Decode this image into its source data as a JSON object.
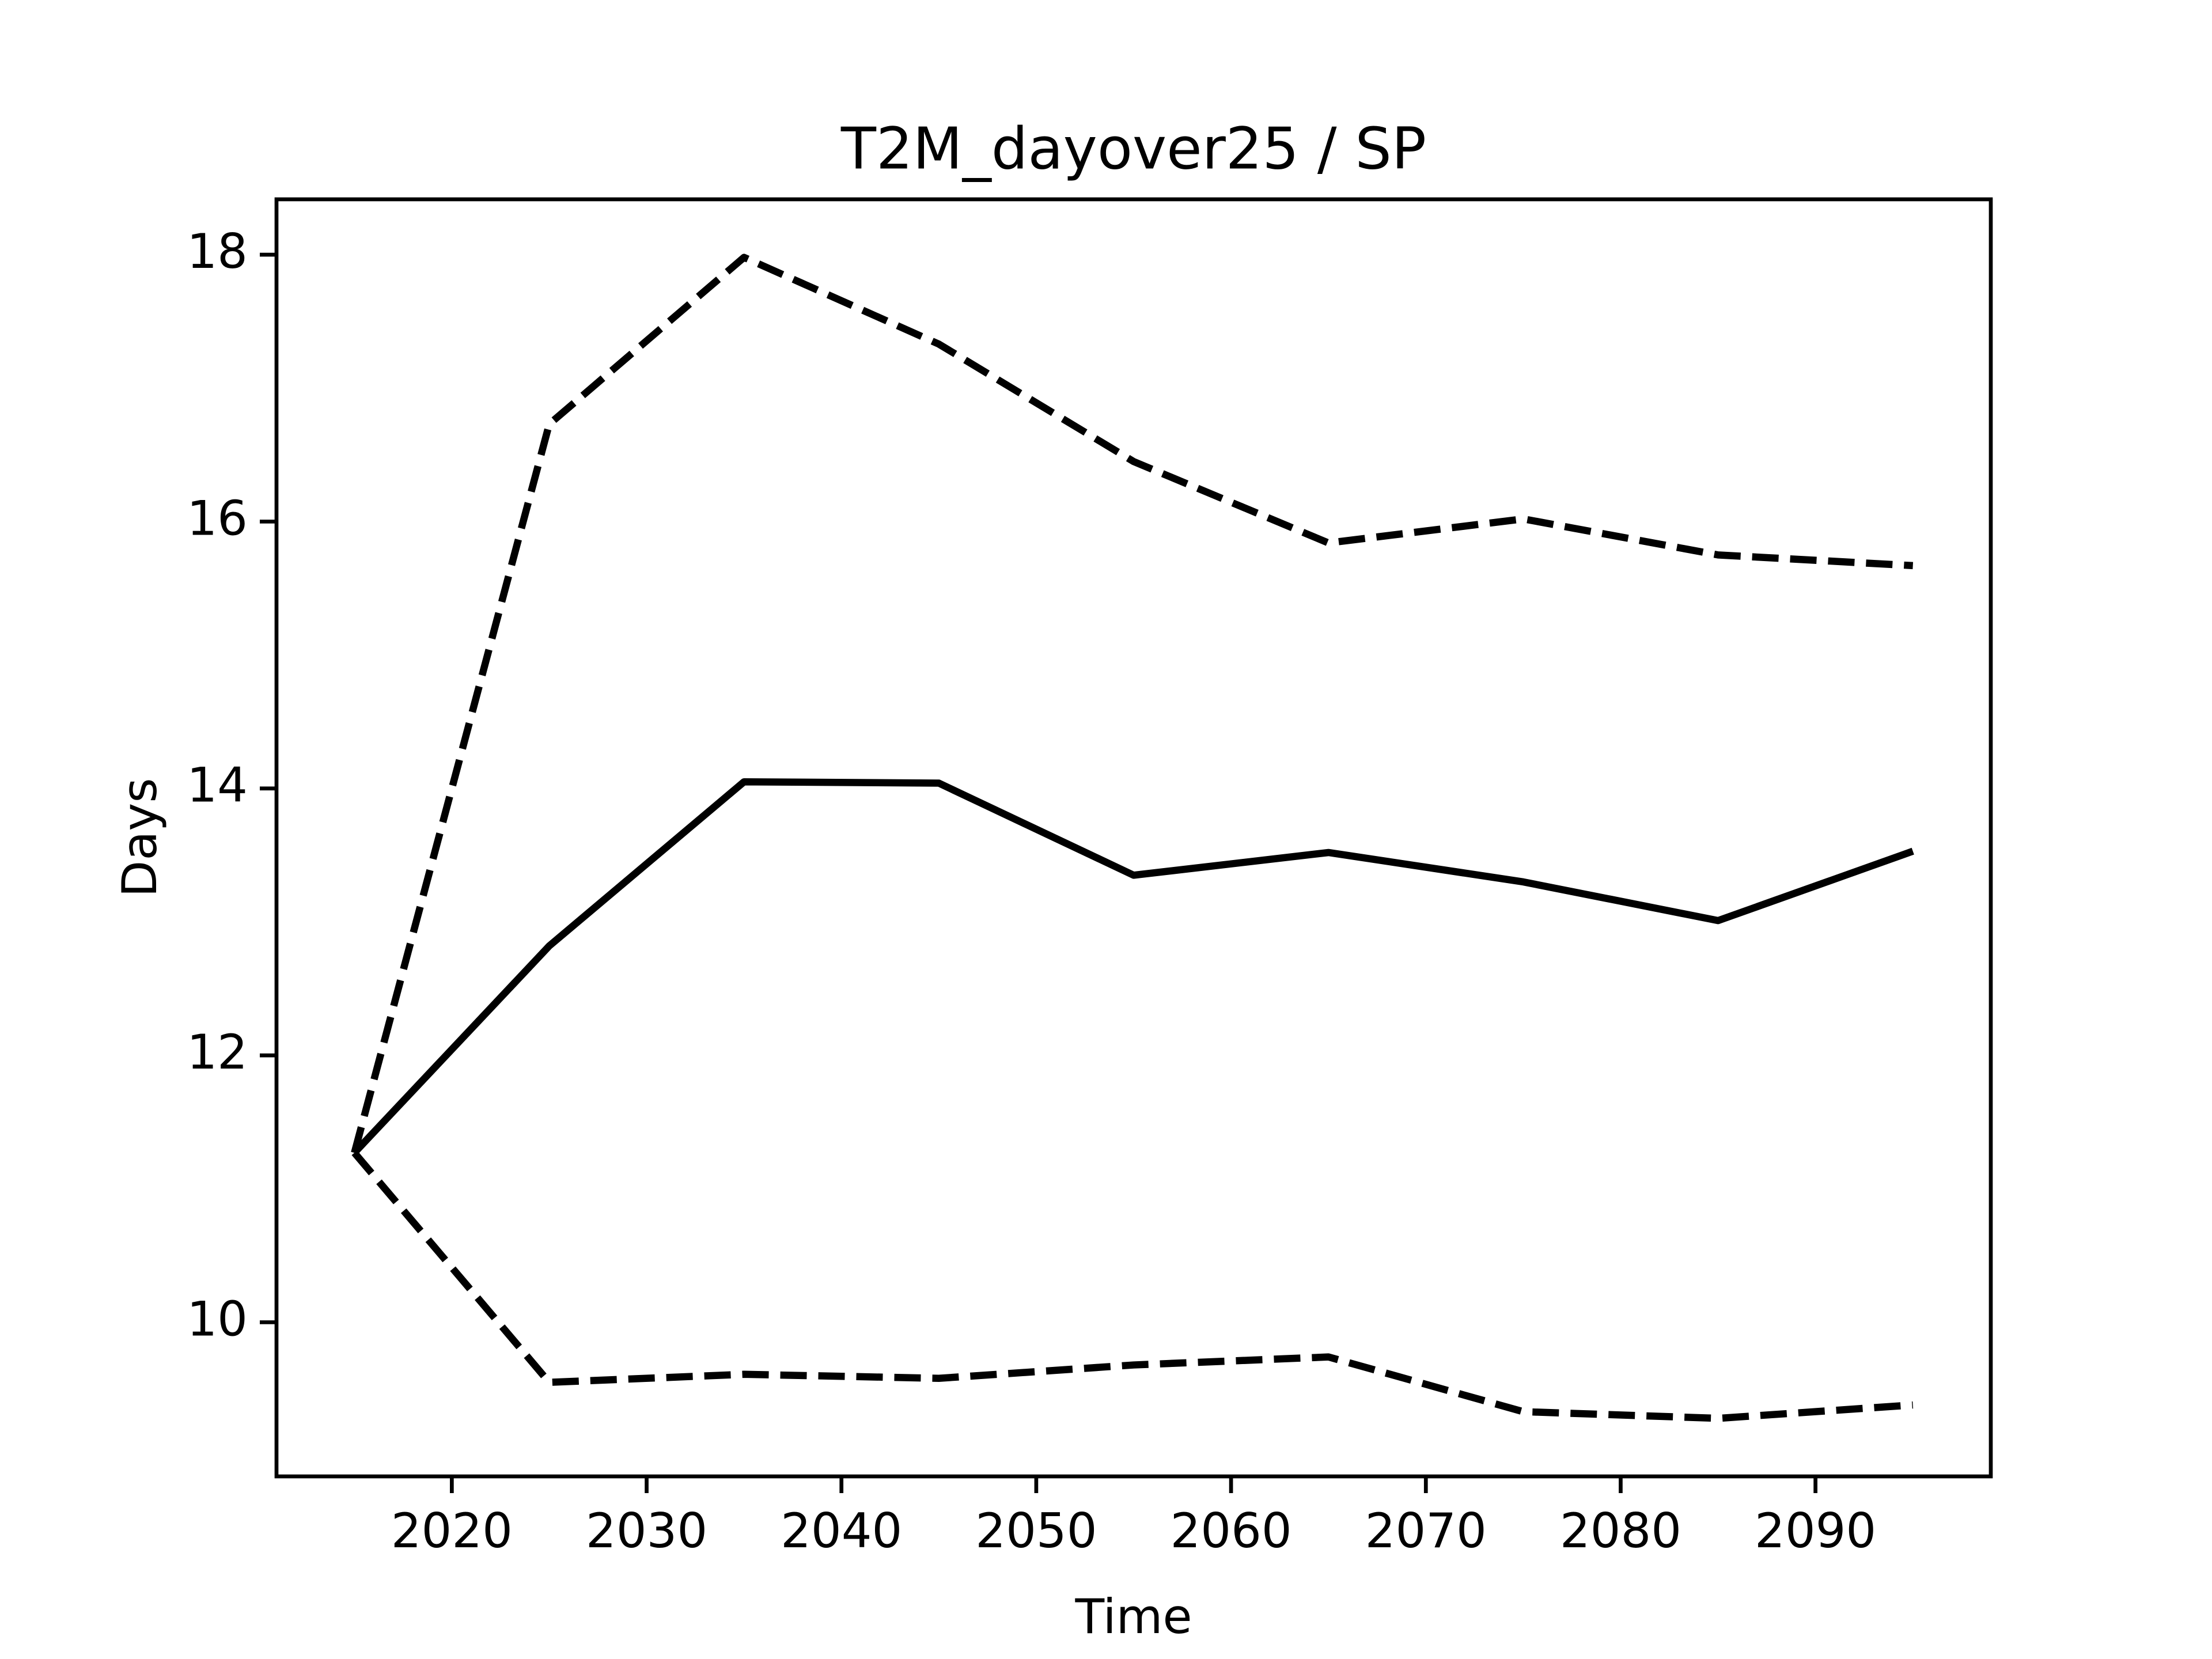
{
  "chart_data": {
    "type": "line",
    "title": "T2M_dayover25 / SP",
    "x_label": "Time",
    "y_label": "Days",
    "x": [
      2015,
      2025,
      2035,
      2045,
      2055,
      2065,
      2075,
      2085,
      2095
    ],
    "series": [
      {
        "color": "#000000",
        "style": "solid",
        "values": [
          11.27,
          12.82,
          14.05,
          14.04,
          13.35,
          13.52,
          13.3,
          13.01,
          13.53
        ]
      },
      {
        "color": "#000000",
        "style": "dashed",
        "values": [
          11.27,
          16.73,
          17.98,
          17.33,
          16.45,
          15.84,
          16.02,
          15.75,
          15.67
        ]
      },
      {
        "color": "#000000",
        "style": "dashed",
        "values": [
          11.27,
          9.55,
          9.61,
          9.58,
          9.68,
          9.74,
          9.33,
          9.28,
          9.38
        ]
      }
    ],
    "xlim": [
      2011,
      2099
    ],
    "ylim": [
      8.845,
      18.415
    ],
    "xticks": [
      2020,
      2030,
      2040,
      2050,
      2060,
      2070,
      2080,
      2090
    ],
    "yticks": [
      10,
      12,
      14,
      16,
      18
    ],
    "grid": false
  }
}
